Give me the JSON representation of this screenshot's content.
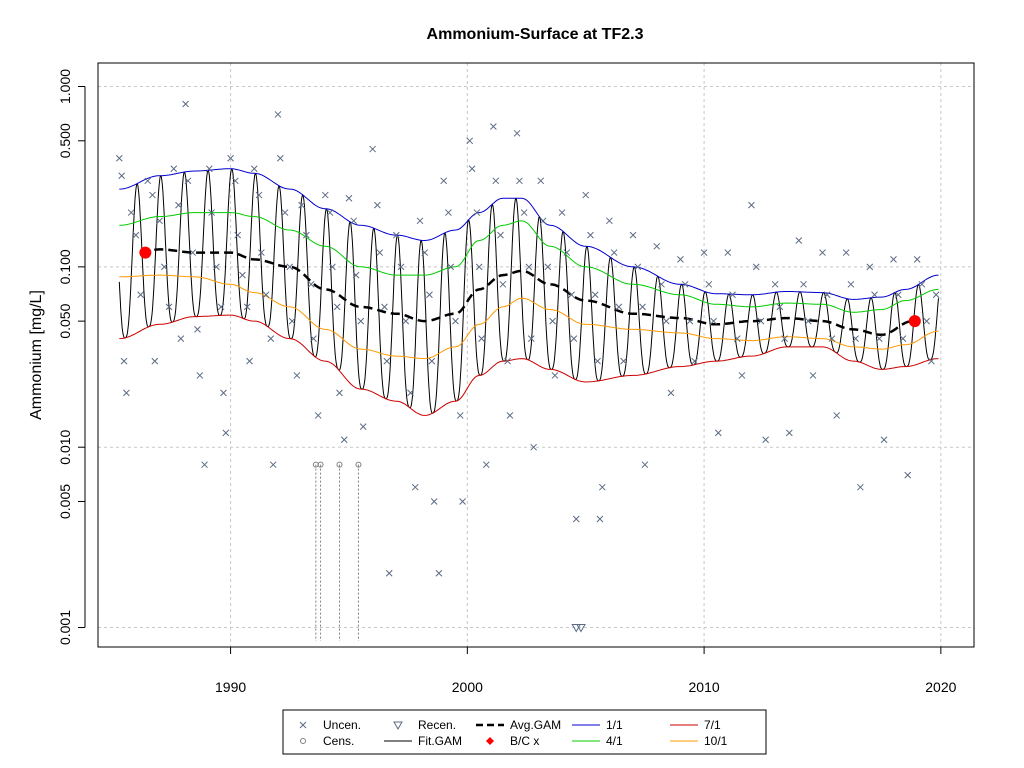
{
  "chart_data": {
    "type": "line",
    "title": "Ammonium-Surface at TF2.3",
    "xlabel": "",
    "ylabel": "Ammonium [mg/L]",
    "xlim": [
      1984.4,
      2021.4
    ],
    "ylim": [
      0.00078,
      1.35
    ],
    "y_scale": "log",
    "grid": true,
    "x_ticks": [
      1990,
      2000,
      2010,
      2020
    ],
    "x_tick_labels": [
      "1990",
      "2000",
      "2010",
      "2020"
    ],
    "y_ticks": [
      0.001,
      0.005,
      0.01,
      0.05,
      0.1,
      0.5,
      1.0
    ],
    "y_tick_labels": [
      "0.001",
      "0.005",
      "0.010",
      "0.050",
      "0.100",
      "0.500",
      "1.000"
    ],
    "legend": {
      "placement": "bottom",
      "entries": [
        {
          "label": "Uncen.",
          "symbol": "x",
          "color": "#5b6b84"
        },
        {
          "label": "Cens.",
          "symbol": "circle",
          "color": "#808080"
        },
        {
          "label": "Recen.",
          "symbol": "triangle-down",
          "color": "#5b6b84"
        },
        {
          "label": "Fit.GAM",
          "symbol": "line",
          "color": "#000000"
        },
        {
          "label": "Avg.GAM",
          "symbol": "dashed",
          "color": "#000000"
        },
        {
          "label": "B/C x",
          "symbol": "diamond",
          "color": "#ff0000"
        },
        {
          "label": "1/1",
          "symbol": "line",
          "color": "#0000cc"
        },
        {
          "label": "4/1",
          "symbol": "line",
          "color": "#00cc00"
        },
        {
          "label": "7/1",
          "symbol": "line",
          "color": "#cc0000"
        },
        {
          "label": "10/1",
          "symbol": "line",
          "color": "#ff9900"
        }
      ]
    },
    "series": [
      {
        "name": "1/1",
        "color": "#0000cc",
        "x": [
          1985.3,
          1987,
          1988.5,
          1990,
          1991,
          1992.5,
          1994,
          1995.5,
          1997,
          1998.2,
          1999.5,
          2000.5,
          2001.5,
          2002.3,
          2003.5,
          2005,
          2007,
          2009,
          2010.5,
          2012,
          2013.5,
          2015,
          2016.3,
          2017.5,
          2018.5,
          2019.9
        ],
        "y": [
          0.27,
          0.32,
          0.34,
          0.35,
          0.33,
          0.27,
          0.21,
          0.17,
          0.15,
          0.14,
          0.16,
          0.2,
          0.24,
          0.24,
          0.17,
          0.13,
          0.1,
          0.08,
          0.071,
          0.07,
          0.073,
          0.072,
          0.066,
          0.068,
          0.075,
          0.09
        ]
      },
      {
        "name": "4/1",
        "color": "#00cc00",
        "x": [
          1985.3,
          1987,
          1988.5,
          1990,
          1991,
          1992.5,
          1994,
          1995.5,
          1997,
          1998.2,
          1999.5,
          2000.5,
          2001.5,
          2002.3,
          2003.5,
          2005,
          2007,
          2009,
          2010.5,
          2012,
          2013.5,
          2015,
          2016.3,
          2017.5,
          2018.5,
          2019.9
        ],
        "y": [
          0.17,
          0.19,
          0.2,
          0.2,
          0.19,
          0.16,
          0.13,
          0.1,
          0.09,
          0.09,
          0.1,
          0.14,
          0.17,
          0.18,
          0.13,
          0.1,
          0.08,
          0.07,
          0.062,
          0.06,
          0.063,
          0.062,
          0.056,
          0.058,
          0.065,
          0.075
        ]
      },
      {
        "name": "Avg.GAM",
        "color": "#000000",
        "dashed": true,
        "x": [
          1986.2,
          1987,
          1988.5,
          1990,
          1991,
          1992.5,
          1994,
          1995.5,
          1997,
          1998.2,
          1999.5,
          2000.5,
          2001.5,
          2002.3,
          2003.5,
          2005,
          2007,
          2009,
          2010.5,
          2012,
          2013.5,
          2015,
          2016.3,
          2017.5,
          2018.8
        ],
        "y": [
          0.12,
          0.125,
          0.12,
          0.12,
          0.11,
          0.1,
          0.075,
          0.06,
          0.055,
          0.05,
          0.055,
          0.075,
          0.09,
          0.095,
          0.08,
          0.065,
          0.055,
          0.052,
          0.048,
          0.05,
          0.052,
          0.05,
          0.045,
          0.042,
          0.05
        ]
      },
      {
        "name": "10/1",
        "color": "#ff9900",
        "x": [
          1985.3,
          1987,
          1988.5,
          1990,
          1991,
          1992.5,
          1994,
          1995.5,
          1997,
          1998.2,
          1999.5,
          2000.5,
          2001.5,
          2002.3,
          2003.5,
          2005,
          2007,
          2009,
          2010.5,
          2012,
          2013.5,
          2015,
          2016.3,
          2017.5,
          2018.5,
          2019.9
        ],
        "y": [
          0.088,
          0.09,
          0.088,
          0.08,
          0.072,
          0.06,
          0.045,
          0.035,
          0.032,
          0.031,
          0.036,
          0.048,
          0.06,
          0.067,
          0.058,
          0.048,
          0.045,
          0.043,
          0.04,
          0.039,
          0.041,
          0.04,
          0.036,
          0.035,
          0.037,
          0.044
        ]
      },
      {
        "name": "7/1",
        "color": "#cc0000",
        "x": [
          1985.3,
          1987,
          1988.5,
          1990,
          1991,
          1992.5,
          1994,
          1995.5,
          1997,
          1998.2,
          1999.5,
          2000.5,
          2001.5,
          2002.3,
          2003.5,
          2005,
          2007,
          2009,
          2010.5,
          2012,
          2013.5,
          2015,
          2016.3,
          2017.5,
          2018.5,
          2019.9
        ],
        "y": [
          0.04,
          0.048,
          0.053,
          0.054,
          0.05,
          0.04,
          0.03,
          0.021,
          0.018,
          0.015,
          0.018,
          0.025,
          0.03,
          0.031,
          0.027,
          0.023,
          0.025,
          0.028,
          0.03,
          0.032,
          0.036,
          0.036,
          0.03,
          0.027,
          0.028,
          0.031
        ]
      }
    ],
    "fit_gam": {
      "name": "Fit.GAM",
      "color": "#000000",
      "note": "seasonal oscillation between the 1/1 (winter high) and 7/1 (summer low) curves, one cycle per year"
    },
    "bc_points": [
      {
        "x": 1986.4,
        "y": 0.12
      },
      {
        "x": 2018.9,
        "y": 0.05
      }
    ],
    "censored_points": [
      {
        "x": 1993.6,
        "y": 0.008
      },
      {
        "x": 1993.8,
        "y": 0.008
      },
      {
        "x": 1994.6,
        "y": 0.008
      },
      {
        "x": 1995.4,
        "y": 0.008
      }
    ],
    "recensored_points": [
      {
        "x": 2004.6,
        "y": 0.001
      },
      {
        "x": 2004.8,
        "y": 0.001
      }
    ],
    "uncensored_points": [
      [
        1985.3,
        0.4
      ],
      [
        1985.4,
        0.32
      ],
      [
        1985.5,
        0.03
      ],
      [
        1985.6,
        0.02
      ],
      [
        1985.8,
        0.2
      ],
      [
        1986.0,
        0.15
      ],
      [
        1986.2,
        0.07
      ],
      [
        1986.5,
        0.3
      ],
      [
        1986.7,
        0.25
      ],
      [
        1986.8,
        0.03
      ],
      [
        1987.0,
        0.18
      ],
      [
        1987.2,
        0.1
      ],
      [
        1987.4,
        0.06
      ],
      [
        1987.6,
        0.35
      ],
      [
        1987.8,
        0.22
      ],
      [
        1987.9,
        0.04
      ],
      [
        1988.1,
        0.8
      ],
      [
        1988.2,
        0.3
      ],
      [
        1988.4,
        0.12
      ],
      [
        1988.6,
        0.045
      ],
      [
        1988.7,
        0.025
      ],
      [
        1988.9,
        0.008
      ],
      [
        1989.1,
        0.35
      ],
      [
        1989.2,
        0.2
      ],
      [
        1989.4,
        0.1
      ],
      [
        1989.6,
        0.06
      ],
      [
        1989.7,
        0.02
      ],
      [
        1989.8,
        0.012
      ],
      [
        1990.0,
        0.4
      ],
      [
        1990.2,
        0.3
      ],
      [
        1990.3,
        0.15
      ],
      [
        1990.5,
        0.09
      ],
      [
        1990.7,
        0.06
      ],
      [
        1990.8,
        0.03
      ],
      [
        1991.0,
        0.35
      ],
      [
        1991.2,
        0.25
      ],
      [
        1991.3,
        0.12
      ],
      [
        1991.5,
        0.07
      ],
      [
        1991.7,
        0.04
      ],
      [
        1991.8,
        0.008
      ],
      [
        1992.0,
        0.7
      ],
      [
        1992.1,
        0.4
      ],
      [
        1992.3,
        0.2
      ],
      [
        1992.5,
        0.1
      ],
      [
        1992.6,
        0.05
      ],
      [
        1992.8,
        0.025
      ],
      [
        1993.0,
        0.22
      ],
      [
        1993.2,
        0.15
      ],
      [
        1993.4,
        0.08
      ],
      [
        1993.5,
        0.04
      ],
      [
        1993.7,
        0.015
      ],
      [
        1994.0,
        0.25
      ],
      [
        1994.2,
        0.2
      ],
      [
        1994.3,
        0.1
      ],
      [
        1994.5,
        0.06
      ],
      [
        1994.6,
        0.02
      ],
      [
        1994.8,
        0.011
      ],
      [
        1995.0,
        0.24
      ],
      [
        1995.2,
        0.18
      ],
      [
        1995.3,
        0.09
      ],
      [
        1995.5,
        0.05
      ],
      [
        1995.6,
        0.013
      ],
      [
        1996.0,
        0.45
      ],
      [
        1996.2,
        0.22
      ],
      [
        1996.3,
        0.12
      ],
      [
        1996.5,
        0.06
      ],
      [
        1996.6,
        0.03
      ],
      [
        1996.7,
        0.002
      ],
      [
        1997.0,
        0.15
      ],
      [
        1997.2,
        0.1
      ],
      [
        1997.4,
        0.05
      ],
      [
        1997.6,
        0.02
      ],
      [
        1997.8,
        0.006
      ],
      [
        1998.0,
        0.18
      ],
      [
        1998.2,
        0.12
      ],
      [
        1998.4,
        0.07
      ],
      [
        1998.5,
        0.03
      ],
      [
        1998.6,
        0.005
      ],
      [
        1998.8,
        0.002
      ],
      [
        1999.0,
        0.3
      ],
      [
        1999.2,
        0.2
      ],
      [
        1999.3,
        0.1
      ],
      [
        1999.5,
        0.05
      ],
      [
        1999.7,
        0.015
      ],
      [
        1999.8,
        0.005
      ],
      [
        2000.1,
        0.5
      ],
      [
        2000.2,
        0.35
      ],
      [
        2000.4,
        0.2
      ],
      [
        2000.5,
        0.1
      ],
      [
        2000.6,
        0.04
      ],
      [
        2000.8,
        0.008
      ],
      [
        2001.1,
        0.6
      ],
      [
        2001.2,
        0.3
      ],
      [
        2001.4,
        0.15
      ],
      [
        2001.5,
        0.08
      ],
      [
        2001.7,
        0.03
      ],
      [
        2001.8,
        0.015
      ],
      [
        2002.1,
        0.55
      ],
      [
        2002.2,
        0.3
      ],
      [
        2002.4,
        0.2
      ],
      [
        2002.6,
        0.1
      ],
      [
        2002.7,
        0.04
      ],
      [
        2002.8,
        0.01
      ],
      [
        2003.1,
        0.3
      ],
      [
        2003.2,
        0.18
      ],
      [
        2003.4,
        0.1
      ],
      [
        2003.6,
        0.05
      ],
      [
        2003.7,
        0.025
      ],
      [
        2004.0,
        0.2
      ],
      [
        2004.2,
        0.12
      ],
      [
        2004.4,
        0.07
      ],
      [
        2004.5,
        0.04
      ],
      [
        2004.6,
        0.004
      ],
      [
        2005.0,
        0.25
      ],
      [
        2005.2,
        0.15
      ],
      [
        2005.4,
        0.07
      ],
      [
        2005.5,
        0.03
      ],
      [
        2005.6,
        0.004
      ],
      [
        2005.7,
        0.006
      ],
      [
        2006.0,
        0.18
      ],
      [
        2006.2,
        0.12
      ],
      [
        2006.4,
        0.06
      ],
      [
        2006.6,
        0.03
      ],
      [
        2007.0,
        0.15
      ],
      [
        2007.2,
        0.1
      ],
      [
        2007.4,
        0.06
      ],
      [
        2007.5,
        0.008
      ],
      [
        2008.0,
        0.13
      ],
      [
        2008.2,
        0.08
      ],
      [
        2008.4,
        0.05
      ],
      [
        2008.6,
        0.02
      ],
      [
        2009.0,
        0.11
      ],
      [
        2009.2,
        0.08
      ],
      [
        2009.4,
        0.05
      ],
      [
        2009.6,
        0.03
      ],
      [
        2010.0,
        0.12
      ],
      [
        2010.2,
        0.08
      ],
      [
        2010.4,
        0.05
      ],
      [
        2010.6,
        0.012
      ],
      [
        2011.0,
        0.12
      ],
      [
        2011.2,
        0.07
      ],
      [
        2011.4,
        0.04
      ],
      [
        2011.6,
        0.025
      ],
      [
        2012.0,
        0.22
      ],
      [
        2012.2,
        0.1
      ],
      [
        2012.4,
        0.05
      ],
      [
        2012.6,
        0.011
      ],
      [
        2013.0,
        0.08
      ],
      [
        2013.2,
        0.06
      ],
      [
        2013.4,
        0.04
      ],
      [
        2013.6,
        0.012
      ],
      [
        2014.0,
        0.14
      ],
      [
        2014.2,
        0.08
      ],
      [
        2014.4,
        0.05
      ],
      [
        2014.6,
        0.025
      ],
      [
        2015.0,
        0.12
      ],
      [
        2015.2,
        0.07
      ],
      [
        2015.4,
        0.04
      ],
      [
        2015.6,
        0.015
      ],
      [
        2016.0,
        0.12
      ],
      [
        2016.2,
        0.08
      ],
      [
        2016.4,
        0.04
      ],
      [
        2016.6,
        0.006
      ],
      [
        2017.0,
        0.1
      ],
      [
        2017.2,
        0.07
      ],
      [
        2017.4,
        0.04
      ],
      [
        2017.6,
        0.011
      ],
      [
        2018.0,
        0.11
      ],
      [
        2018.2,
        0.07
      ],
      [
        2018.4,
        0.04
      ],
      [
        2018.6,
        0.007
      ],
      [
        2019.0,
        0.11
      ],
      [
        2019.2,
        0.08
      ],
      [
        2019.4,
        0.05
      ],
      [
        2019.6,
        0.03
      ],
      [
        2019.8,
        0.07
      ]
    ]
  }
}
